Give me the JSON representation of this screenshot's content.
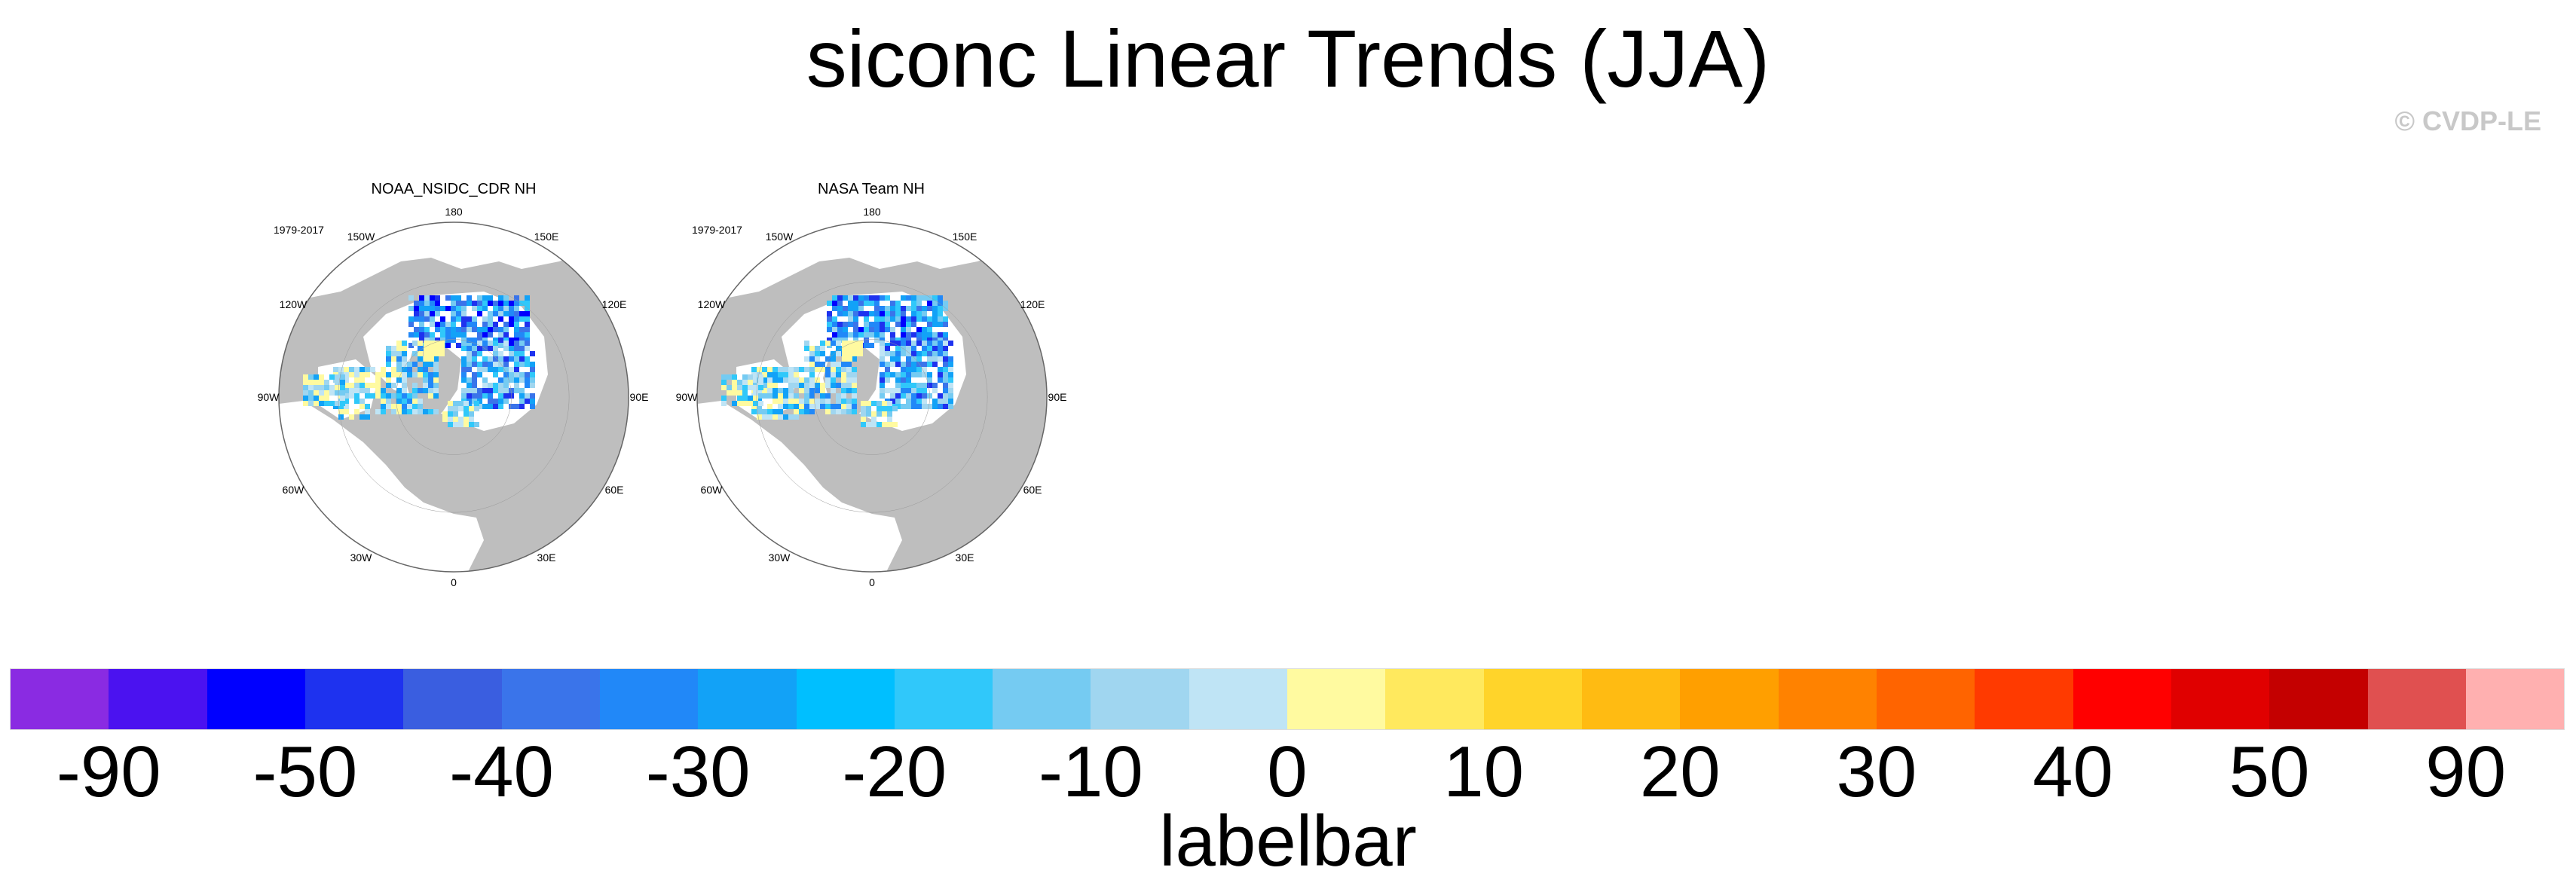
{
  "title": "siconc Linear Trends (JJA)",
  "credit": "© CVDP-LE",
  "panels": [
    {
      "title": "NOAA_NSIDC_CDR NH",
      "period": "1979-2017",
      "longitude_labels": [
        "180",
        "150E",
        "120E",
        "90E",
        "60E",
        "30E",
        "0",
        "30W",
        "60W",
        "90W",
        "120W",
        "150W"
      ]
    },
    {
      "title": "NASA Team NH",
      "period": "1979-2017",
      "longitude_labels": [
        "180",
        "150E",
        "120E",
        "90E",
        "60E",
        "30E",
        "0",
        "30W",
        "60W",
        "90W",
        "120W",
        "150W"
      ]
    }
  ],
  "colors": {
    "land": "#bebebe",
    "ocean": "#ffffff",
    "colorbar": [
      "#8a2be2",
      "#4b12f0",
      "#0000ff",
      "#1e32ef",
      "#3a5ee0",
      "#3a74ea",
      "#2188f8",
      "#12a2f7",
      "#00bfff",
      "#30c8fa",
      "#75cbf2",
      "#a0d6f0",
      "#bfe4f5",
      "#fffaa0",
      "#ffe95e",
      "#ffd42a",
      "#ffbb12",
      "#ff9f00",
      "#ff8200",
      "#ff6400",
      "#ff3a00",
      "#ff0000",
      "#e00000",
      "#c40000",
      "#e05050",
      "#ffb0b0"
    ]
  },
  "labelbar": {
    "tick_labels": [
      "-90",
      "-50",
      "-40",
      "-30",
      "-20",
      "-10",
      "0",
      "10",
      "20",
      "30",
      "40",
      "50",
      "90"
    ],
    "title": "labelbar"
  }
}
